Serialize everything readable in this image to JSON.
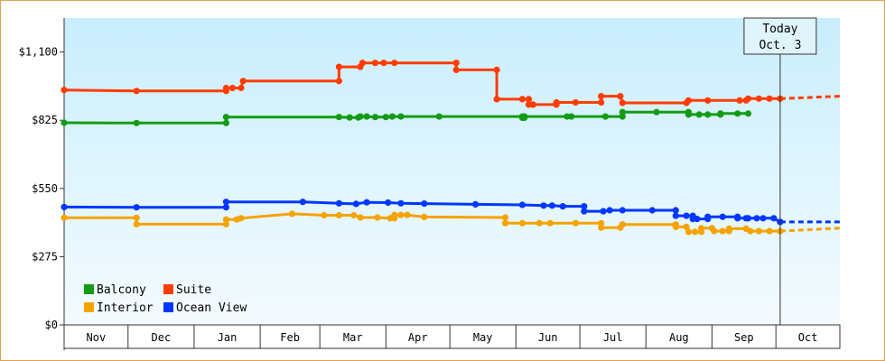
{
  "chart_data": {
    "type": "line",
    "title": "",
    "xlabel": "",
    "ylabel": "",
    "ylim": [
      0,
      1237
    ],
    "y_ticks": [
      {
        "value": 0,
        "label": "$0"
      },
      {
        "value": 275,
        "label": "$275"
      },
      {
        "value": 550,
        "label": "$550"
      },
      {
        "value": 825,
        "label": "$825"
      },
      {
        "value": 1100,
        "label": "$1,100"
      }
    ],
    "x_unit": "days since Oct 1 of previous year",
    "xlim": [
      31,
      395
    ],
    "months": [
      {
        "label": "Nov",
        "start": 31,
        "end": 61
      },
      {
        "label": "Dec",
        "start": 61,
        "end": 92
      },
      {
        "label": "Jan",
        "start": 92,
        "end": 123
      },
      {
        "label": "Feb",
        "start": 123,
        "end": 151
      },
      {
        "label": "Mar",
        "start": 151,
        "end": 182
      },
      {
        "label": "Apr",
        "start": 182,
        "end": 212
      },
      {
        "label": "May",
        "start": 212,
        "end": 243
      },
      {
        "label": "Jun",
        "start": 243,
        "end": 273
      },
      {
        "label": "Jul",
        "start": 273,
        "end": 304
      },
      {
        "label": "Aug",
        "start": 304,
        "end": 335
      },
      {
        "label": "Sep",
        "start": 335,
        "end": 365
      },
      {
        "label": "Oct",
        "start": 365,
        "end": 395
      }
    ],
    "today": {
      "line1": "Today",
      "line2": "Oct. 3",
      "x": 367
    },
    "grid": false,
    "legend_position": "bottom-left",
    "series": [
      {
        "name": "Balcony",
        "color": "#139c13",
        "points": [
          [
            31,
            815
          ],
          [
            65,
            814
          ],
          [
            107,
            814
          ],
          [
            107,
            838
          ],
          [
            160,
            838
          ],
          [
            165,
            836
          ],
          [
            169,
            836
          ],
          [
            170,
            840
          ],
          [
            173,
            840
          ],
          [
            177,
            838
          ],
          [
            182,
            838
          ],
          [
            185,
            840
          ],
          [
            189,
            840
          ],
          [
            207,
            840
          ],
          [
            246,
            840
          ],
          [
            246,
            835
          ],
          [
            247,
            835
          ],
          [
            247,
            840
          ],
          [
            267,
            840
          ],
          [
            269,
            840
          ],
          [
            285,
            840
          ],
          [
            293,
            840
          ],
          [
            293,
            858
          ],
          [
            309,
            858
          ],
          [
            324,
            858
          ],
          [
            324,
            848
          ],
          [
            329,
            848
          ],
          [
            333,
            848
          ],
          [
            339,
            848
          ],
          [
            339,
            852
          ],
          [
            347,
            852
          ],
          [
            352,
            852
          ]
        ],
        "projection": []
      },
      {
        "name": "Suite",
        "color": "#ff3c00",
        "points": [
          [
            31,
            947
          ],
          [
            65,
            943
          ],
          [
            107,
            943
          ],
          [
            107,
            955
          ],
          [
            110,
            955
          ],
          [
            114,
            955
          ],
          [
            115,
            983
          ],
          [
            160,
            983
          ],
          [
            160,
            1040
          ],
          [
            170,
            1040
          ],
          [
            171,
            1056
          ],
          [
            177,
            1056
          ],
          [
            181,
            1056
          ],
          [
            186,
            1056
          ],
          [
            215,
            1056
          ],
          [
            215,
            1028
          ],
          [
            234,
            1028
          ],
          [
            234,
            910
          ],
          [
            246,
            910
          ],
          [
            249,
            910
          ],
          [
            249,
            888
          ],
          [
            251,
            888
          ],
          [
            262,
            888
          ],
          [
            262,
            897
          ],
          [
            271,
            897
          ],
          [
            283,
            897
          ],
          [
            283,
            922
          ],
          [
            292,
            922
          ],
          [
            293,
            895
          ],
          [
            323,
            895
          ],
          [
            324,
            905
          ],
          [
            333,
            905
          ],
          [
            348,
            905
          ],
          [
            351,
            905
          ],
          [
            352,
            912
          ],
          [
            357,
            912
          ],
          [
            362,
            912
          ],
          [
            367,
            912
          ]
        ],
        "projection": [
          [
            367,
            912
          ],
          [
            395,
            922
          ]
        ]
      },
      {
        "name": "Interior",
        "color": "#f5a300",
        "points": [
          [
            31,
            432
          ],
          [
            65,
            432
          ],
          [
            65,
            406
          ],
          [
            107,
            406
          ],
          [
            107,
            425
          ],
          [
            112,
            425
          ],
          [
            114,
            430
          ],
          [
            138,
            448
          ],
          [
            153,
            442
          ],
          [
            160,
            442
          ],
          [
            167,
            442
          ],
          [
            170,
            433
          ],
          [
            178,
            433
          ],
          [
            184,
            430
          ],
          [
            186,
            430
          ],
          [
            186,
            443
          ],
          [
            189,
            443
          ],
          [
            192,
            443
          ],
          [
            200,
            435
          ],
          [
            238,
            433
          ],
          [
            238,
            410
          ],
          [
            246,
            410
          ],
          [
            254,
            410
          ],
          [
            259,
            410
          ],
          [
            271,
            410
          ],
          [
            283,
            410
          ],
          [
            283,
            392
          ],
          [
            292,
            392
          ],
          [
            293,
            405
          ],
          [
            318,
            405
          ],
          [
            318,
            395
          ],
          [
            323,
            395
          ],
          [
            324,
            375
          ],
          [
            327,
            375
          ],
          [
            330,
            375
          ],
          [
            330,
            390
          ],
          [
            335,
            390
          ],
          [
            336,
            378
          ],
          [
            340,
            378
          ],
          [
            343,
            378
          ],
          [
            343,
            388
          ],
          [
            351,
            388
          ],
          [
            353,
            378
          ],
          [
            357,
            378
          ],
          [
            362,
            378
          ],
          [
            367,
            378
          ]
        ],
        "projection": [
          [
            367,
            378
          ],
          [
            395,
            390
          ]
        ]
      },
      {
        "name": "Ocean View",
        "color": "#0037ff",
        "points": [
          [
            31,
            475
          ],
          [
            65,
            474
          ],
          [
            107,
            474
          ],
          [
            107,
            496
          ],
          [
            143,
            496
          ],
          [
            160,
            490
          ],
          [
            168,
            488
          ],
          [
            173,
            494
          ],
          [
            183,
            493
          ],
          [
            189,
            490
          ],
          [
            200,
            489
          ],
          [
            224,
            486
          ],
          [
            246,
            484
          ],
          [
            256,
            481
          ],
          [
            260,
            481
          ],
          [
            265,
            478
          ],
          [
            275,
            478
          ],
          [
            275,
            458
          ],
          [
            284,
            458
          ],
          [
            287,
            462
          ],
          [
            293,
            462
          ],
          [
            307,
            462
          ],
          [
            318,
            462
          ],
          [
            318,
            440
          ],
          [
            323,
            440
          ],
          [
            326,
            440
          ],
          [
            326,
            427
          ],
          [
            328,
            427
          ],
          [
            333,
            427
          ],
          [
            333,
            436
          ],
          [
            340,
            436
          ],
          [
            347,
            436
          ],
          [
            347,
            430
          ],
          [
            351,
            430
          ],
          [
            352,
            430
          ],
          [
            356,
            430
          ],
          [
            359,
            430
          ],
          [
            364,
            430
          ],
          [
            367,
            415
          ]
        ],
        "projection": [
          [
            367,
            415
          ],
          [
            395,
            415
          ]
        ]
      }
    ]
  },
  "legend": [
    {
      "label": "Balcony",
      "color": "#139c13"
    },
    {
      "label": "Suite",
      "color": "#ff3c00"
    },
    {
      "label": "Interior",
      "color": "#f5a300"
    },
    {
      "label": "Ocean View",
      "color": "#0037ff"
    }
  ]
}
